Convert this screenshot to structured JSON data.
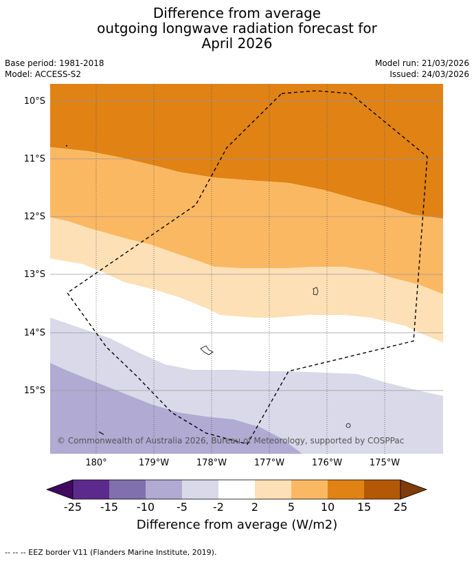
{
  "title": {
    "line1": "Difference from average",
    "line2": "outgoing longwave radiation forecast for",
    "line3": "April 2026"
  },
  "meta": {
    "base_period": "Base period: 1981-2018",
    "model": "Model: ACCESS-S2",
    "model_run": "Model run: 21/03/2026",
    "issued": "Issued: 24/03/2026"
  },
  "map": {
    "lat_labels": [
      "10°S",
      "11°S",
      "12°S",
      "13°S",
      "14°S",
      "15°S"
    ],
    "lon_labels": [
      "180°",
      "179°W",
      "178°W",
      "177°W",
      "176°W",
      "175°W"
    ],
    "copyright": "© Commonwealth of Australia 2026, Bureau of Meteorology, supported by COSPPac"
  },
  "colorbar": {
    "ticks": [
      "-25",
      "-15",
      "-10",
      "-5",
      "-2",
      "2",
      "5",
      "10",
      "15",
      "25"
    ],
    "colors": [
      "#3f0a60",
      "#5c2a8c",
      "#8070ad",
      "#b1aad3",
      "#d9d9ea",
      "#ffffff",
      "#fde0b6",
      "#fbb862",
      "#e08214",
      "#b35806",
      "#7f3b08"
    ],
    "title": "Difference from average (W/m2)"
  },
  "footer": "--  --  -- EEZ border V11 (Flanders Marine Institute, 2019)."
}
